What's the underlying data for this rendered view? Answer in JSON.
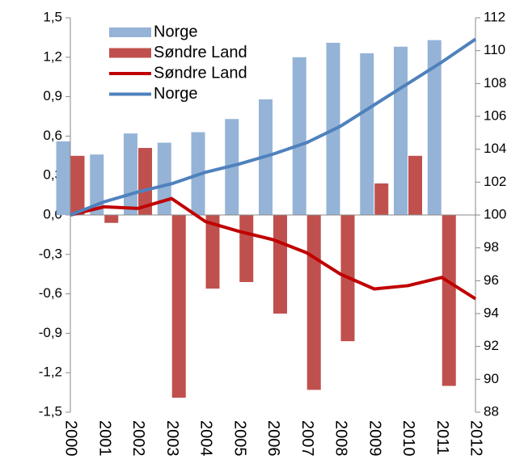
{
  "chart_data": {
    "type": "bar",
    "categories": [
      "2000",
      "2001",
      "2002",
      "2003",
      "2004",
      "2005",
      "2006",
      "2007",
      "2008",
      "2009",
      "2010",
      "2011",
      "2012"
    ],
    "series": [
      {
        "name": "Norge",
        "type": "bar",
        "color": "#95b3d7",
        "values": [
          0.56,
          0.46,
          0.62,
          0.55,
          0.63,
          0.73,
          0.88,
          1.2,
          1.31,
          1.23,
          1.28,
          1.33,
          null
        ]
      },
      {
        "name": "Søndre Land",
        "type": "bar",
        "color": "#c0504d",
        "values": [
          0.45,
          -0.06,
          0.51,
          -1.39,
          -0.56,
          -0.51,
          -0.75,
          -1.33,
          -0.96,
          0.24,
          0.45,
          -1.3,
          null
        ]
      },
      {
        "name": "Søndre Land",
        "type": "line",
        "axis": "y2",
        "color": "#c00000",
        "values": [
          100,
          100.5,
          100.4,
          101.0,
          99.6,
          99.0,
          98.5,
          97.7,
          96.4,
          95.5,
          95.7,
          96.2,
          94.9
        ]
      },
      {
        "name": "Norge",
        "type": "line",
        "axis": "y2",
        "color": "#4f81bd",
        "values": [
          100,
          100.8,
          101.4,
          101.9,
          102.6,
          103.1,
          103.7,
          104.4,
          105.4,
          106.7,
          108.0,
          109.3,
          110.7
        ]
      }
    ],
    "ylim": [
      -1.5,
      1.5
    ],
    "yticks": [
      {
        "value": -1.5,
        "label": "-1,5"
      },
      {
        "value": -1.2,
        "label": "-1,2"
      },
      {
        "value": -0.9,
        "label": "-0,9"
      },
      {
        "value": -0.6,
        "label": "-0,6"
      },
      {
        "value": -0.3,
        "label": "-0,3"
      },
      {
        "value": 0,
        "label": "0,0"
      },
      {
        "value": 0.3,
        "label": "0,3"
      },
      {
        "value": 0.6,
        "label": "0,6"
      },
      {
        "value": 0.9,
        "label": "0,9"
      },
      {
        "value": 1.2,
        "label": "1,2"
      },
      {
        "value": 1.5,
        "label": "1,5"
      }
    ],
    "y2lim": [
      88,
      112
    ],
    "y2ticks": [
      88,
      90,
      92,
      94,
      96,
      98,
      100,
      102,
      104,
      106,
      108,
      110,
      112
    ],
    "grid": false
  }
}
